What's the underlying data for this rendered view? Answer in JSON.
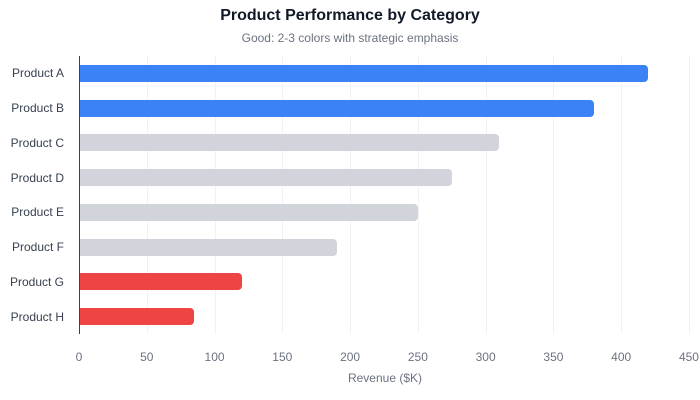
{
  "chart_data": {
    "type": "bar",
    "orientation": "horizontal",
    "title": "Product Performance by Category",
    "subtitle": "Good: 2-3 colors with strategic emphasis",
    "xlabel": "Revenue ($K)",
    "ylabel": "",
    "xlim": [
      0,
      450
    ],
    "xticks": [
      0,
      50,
      100,
      150,
      200,
      250,
      300,
      350,
      400,
      450
    ],
    "grid": true,
    "legend": null,
    "categories": [
      "Product A",
      "Product B",
      "Product C",
      "Product D",
      "Product E",
      "Product F",
      "Product G",
      "Product H"
    ],
    "values": [
      420,
      380,
      310,
      275,
      250,
      190,
      120,
      85
    ],
    "bar_colors": [
      "#3b82f6",
      "#3b82f6",
      "#d1d5db",
      "#d1d5db",
      "#d1d5db",
      "#d1d5db",
      "#ef4444",
      "#ef4444"
    ]
  },
  "colors": {
    "highlight_high": "#3b82f6",
    "neutral": "#d1d5db",
    "highlight_low": "#ef4444",
    "title": "#111827",
    "muted_text": "#6b7280"
  }
}
